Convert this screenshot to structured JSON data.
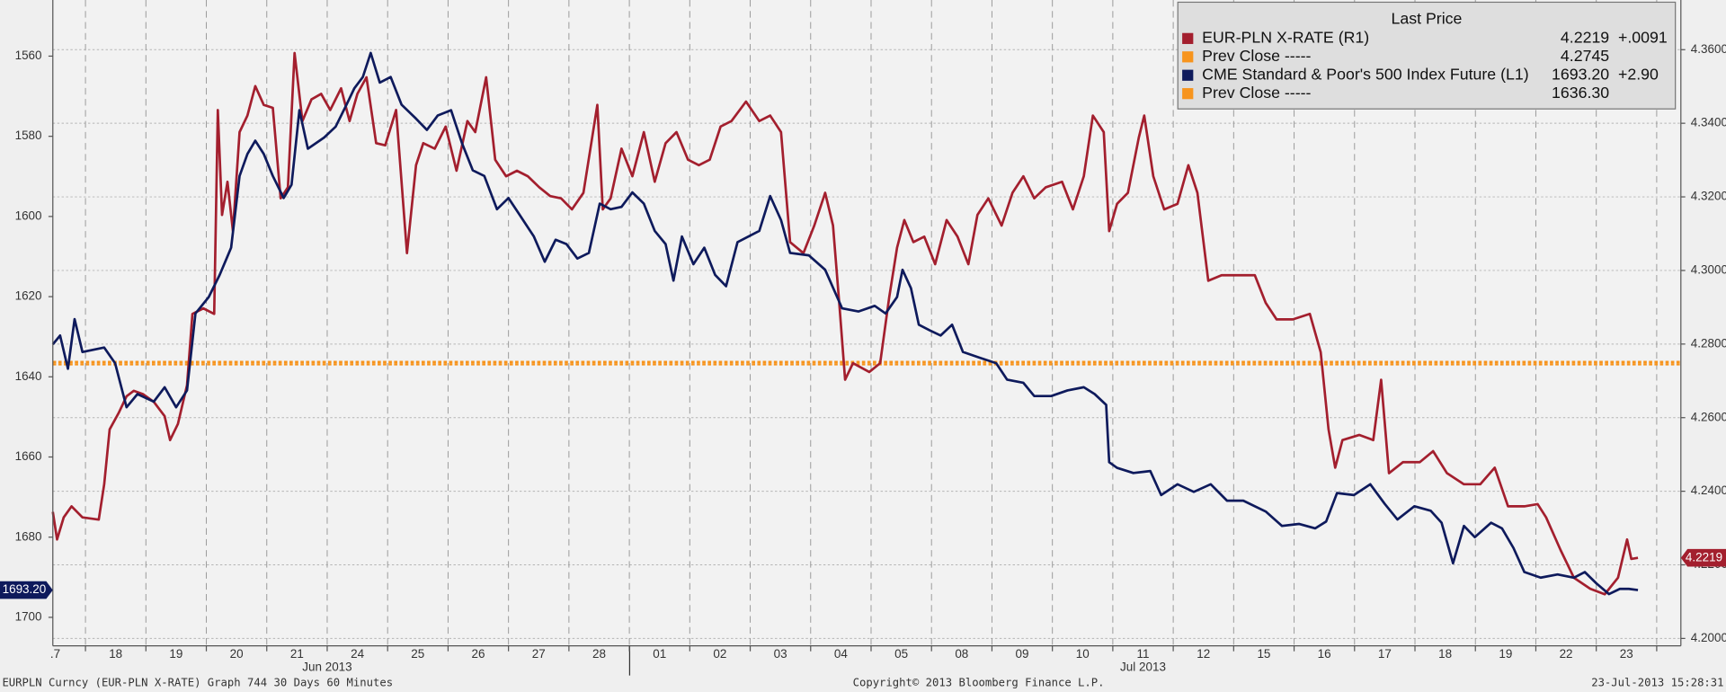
{
  "chart_data": {
    "type": "line",
    "xlim": [
      0.46,
      27.4
    ],
    "xticks": [
      {
        "value": 0.5,
        "label": ".7"
      },
      {
        "value": 1.5,
        "label": "18"
      },
      {
        "value": 2.5,
        "label": "19"
      },
      {
        "value": 3.5,
        "label": "20"
      },
      {
        "value": 4.5,
        "label": "21"
      },
      {
        "value": 5.5,
        "label": "24"
      },
      {
        "value": 6.5,
        "label": "25"
      },
      {
        "value": 7.5,
        "label": "26"
      },
      {
        "value": 8.5,
        "label": "27"
      },
      {
        "value": 9.5,
        "label": "28"
      },
      {
        "value": 10.5,
        "label": "01"
      },
      {
        "value": 11.5,
        "label": "02"
      },
      {
        "value": 12.5,
        "label": "03"
      },
      {
        "value": 13.5,
        "label": "04"
      },
      {
        "value": 14.5,
        "label": "05"
      },
      {
        "value": 15.5,
        "label": "08"
      },
      {
        "value": 16.5,
        "label": "09"
      },
      {
        "value": 17.5,
        "label": "10"
      },
      {
        "value": 18.5,
        "label": "11"
      },
      {
        "value": 19.5,
        "label": "12"
      },
      {
        "value": 20.5,
        "label": "15"
      },
      {
        "value": 21.5,
        "label": "16"
      },
      {
        "value": 22.5,
        "label": "17"
      },
      {
        "value": 23.5,
        "label": "18"
      },
      {
        "value": 24.5,
        "label": "19"
      },
      {
        "value": 25.5,
        "label": "22"
      },
      {
        "value": 26.5,
        "label": "23"
      }
    ],
    "month_ticks": [
      {
        "value": 5.0,
        "label": "Jun 2013"
      },
      {
        "value": 18.5,
        "label": "Jul 2013"
      }
    ],
    "ylim": [
      1707.1,
      1546.0
    ],
    "yticks": [
      1560,
      1580,
      1600,
      1620,
      1640,
      1660,
      1680,
      1700
    ],
    "y2lim": [
      4.198,
      4.3735
    ],
    "y2ticks": [
      {
        "value": 4.2,
        "label": "4.2000"
      },
      {
        "value": 4.22,
        "label": "4.2200"
      },
      {
        "value": 4.24,
        "label": "4.2400"
      },
      {
        "value": 4.26,
        "label": "4.2600"
      },
      {
        "value": 4.28,
        "label": "4.2800"
      },
      {
        "value": 4.3,
        "label": "4.3000"
      },
      {
        "value": 4.32,
        "label": "4.3200"
      },
      {
        "value": 4.34,
        "label": "4.3400"
      },
      {
        "value": 4.36,
        "label": "4.3600"
      }
    ],
    "grid": true,
    "legend": {
      "title": "Last Price",
      "position": "upper right"
    },
    "prev_close_color": "#f7941d",
    "series": [
      {
        "name": "EUR-PLN X-RATE  (R1)",
        "color": "#a31f2e",
        "axis": "y2",
        "last": 4.2219,
        "change": {
          "value": 0.0091,
          "label": "+.0091"
        },
        "prev_close_name": "Prev Close -----",
        "prev_close": 4.2745,
        "x": [
          0.46,
          0.53,
          0.64,
          0.77,
          0.95,
          1.22,
          1.31,
          1.4,
          1.55,
          1.68,
          1.8,
          1.95,
          2.13,
          2.31,
          2.4,
          2.53,
          2.68,
          2.77,
          2.95,
          3.13,
          3.19,
          3.26,
          3.35,
          3.44,
          3.55,
          3.68,
          3.81,
          3.95,
          4.1,
          4.23,
          4.35,
          4.46,
          4.59,
          4.74,
          4.9,
          5.05,
          5.23,
          5.37,
          5.5,
          5.65,
          5.81,
          5.96,
          6.14,
          6.32,
          6.47,
          6.59,
          6.78,
          6.96,
          7.14,
          7.32,
          7.45,
          7.63,
          7.78,
          7.96,
          8.14,
          8.32,
          8.51,
          8.69,
          8.87,
          9.05,
          9.24,
          9.47,
          9.56,
          9.69,
          9.87,
          10.05,
          10.24,
          10.42,
          10.6,
          10.78,
          10.97,
          11.15,
          11.33,
          11.51,
          11.69,
          11.93,
          12.15,
          12.33,
          12.51,
          12.66,
          12.88,
          13.06,
          13.24,
          13.37,
          13.48,
          13.57,
          13.7,
          13.97,
          14.15,
          14.3,
          14.43,
          14.55,
          14.7,
          14.88,
          15.06,
          15.25,
          15.43,
          15.61,
          15.76,
          15.94,
          16.16,
          16.34,
          16.52,
          16.7,
          16.89,
          17.16,
          17.34,
          17.52,
          17.67,
          17.85,
          17.94,
          18.07,
          18.25,
          18.43,
          18.52,
          18.67,
          18.85,
          19.07,
          19.25,
          19.4,
          19.58,
          19.8,
          20.07,
          20.35,
          20.53,
          20.71,
          20.98,
          21.26,
          21.44,
          21.57,
          21.68,
          21.8,
          22.08,
          22.31,
          22.44,
          22.57,
          22.8,
          23.08,
          23.3,
          23.53,
          23.81,
          24.08,
          24.32,
          24.54,
          24.81,
          25.03,
          25.17,
          25.41,
          25.63,
          25.9,
          26.14,
          26.36,
          26.51,
          26.58,
          26.69
        ],
        "values": [
          4.2344,
          4.2269,
          4.2329,
          4.2359,
          4.2329,
          4.2323,
          4.2419,
          4.2568,
          4.2613,
          4.2658,
          4.2673,
          4.2664,
          4.2643,
          4.2604,
          4.2539,
          4.2583,
          4.2688,
          4.2882,
          4.2897,
          4.2882,
          4.3436,
          4.3151,
          4.3241,
          4.3107,
          4.3376,
          4.3421,
          4.3501,
          4.345,
          4.3442,
          4.3196,
          4.3226,
          4.3591,
          4.3406,
          4.3465,
          4.348,
          4.3436,
          4.3495,
          4.3406,
          4.348,
          4.3525,
          4.3346,
          4.334,
          4.3436,
          4.3047,
          4.3286,
          4.3346,
          4.3331,
          4.3391,
          4.3271,
          4.3406,
          4.3376,
          4.3525,
          4.3301,
          4.3256,
          4.3271,
          4.3256,
          4.3226,
          4.3202,
          4.3196,
          4.3166,
          4.3211,
          4.345,
          4.3166,
          4.3196,
          4.3331,
          4.3256,
          4.3376,
          4.3241,
          4.3346,
          4.3376,
          4.3301,
          4.3286,
          4.3301,
          4.3391,
          4.3406,
          4.3459,
          4.3406,
          4.3421,
          4.3376,
          4.3077,
          4.3047,
          4.3122,
          4.3211,
          4.3122,
          4.2897,
          4.2703,
          4.2748,
          4.2724,
          4.2748,
          4.2927,
          4.3062,
          4.3137,
          4.3077,
          4.3092,
          4.3017,
          4.3137,
          4.3092,
          4.3017,
          4.3151,
          4.3196,
          4.3122,
          4.3211,
          4.3256,
          4.3196,
          4.3226,
          4.3241,
          4.3166,
          4.3256,
          4.3421,
          4.3376,
          4.3107,
          4.3181,
          4.3211,
          4.3361,
          4.3421,
          4.3256,
          4.3166,
          4.3181,
          4.3286,
          4.3211,
          4.2972,
          4.2987,
          4.2987,
          4.2987,
          4.2912,
          4.2867,
          4.2867,
          4.2882,
          4.2778,
          4.2568,
          4.2464,
          4.2539,
          4.2553,
          4.2539,
          4.2703,
          4.2449,
          4.2479,
          4.2479,
          4.2509,
          4.2449,
          4.2419,
          4.2419,
          4.2464,
          4.2359,
          4.2359,
          4.2365,
          4.2329,
          4.224,
          4.2165,
          4.2135,
          4.212,
          4.2165,
          4.2269,
          4.2216,
          4.2219
        ]
      },
      {
        "name": "CME Standard & Poor's 500 Index Future  (L1)",
        "color": "#0e1a5c",
        "axis": "y",
        "last": {
          "value": 1693.2,
          "label": "1693.20"
        },
        "change": {
          "value": 2.9,
          "label": "+2.90"
        },
        "prev_close_name": "Prev Close -----",
        "prev_close": {
          "value": 1636.3,
          "label": "1636.30"
        },
        "x": [
          0.46,
          0.58,
          0.71,
          0.82,
          0.95,
          1.31,
          1.49,
          1.68,
          1.86,
          2.13,
          2.31,
          2.5,
          2.68,
          2.82,
          3.04,
          3.22,
          3.41,
          3.55,
          3.68,
          3.81,
          3.95,
          4.1,
          4.28,
          4.41,
          4.54,
          4.68,
          4.95,
          5.14,
          5.32,
          5.45,
          5.59,
          5.72,
          5.87,
          6.05,
          6.23,
          6.47,
          6.65,
          6.83,
          7.05,
          7.23,
          7.41,
          7.6,
          7.81,
          8.0,
          8.18,
          8.42,
          8.6,
          8.78,
          8.96,
          9.14,
          9.33,
          9.51,
          9.69,
          9.87,
          10.05,
          10.24,
          10.42,
          10.6,
          10.73,
          10.87,
          11.06,
          11.24,
          11.42,
          11.6,
          11.79,
          11.97,
          12.15,
          12.33,
          12.51,
          12.66,
          12.97,
          13.24,
          13.52,
          13.79,
          14.06,
          14.24,
          14.43,
          14.52,
          14.66,
          14.79,
          14.97,
          15.15,
          15.34,
          15.52,
          15.79,
          16.07,
          16.25,
          16.52,
          16.7,
          16.98,
          17.25,
          17.52,
          17.7,
          17.89,
          17.94,
          18.07,
          18.34,
          18.62,
          18.8,
          19.07,
          19.34,
          19.62,
          19.89,
          20.16,
          20.53,
          20.8,
          21.08,
          21.35,
          21.53,
          21.71,
          21.99,
          22.26,
          22.5,
          22.71,
          22.99,
          23.26,
          23.44,
          23.63,
          23.81,
          23.99,
          24.26,
          24.44,
          24.63,
          24.81,
          25.08,
          25.36,
          25.63,
          25.81,
          26.0,
          26.21,
          26.39,
          26.54,
          26.69
        ],
        "values": [
          1631.9,
          1629.7,
          1638.0,
          1625.6,
          1633.8,
          1632.7,
          1636.6,
          1647.6,
          1644.3,
          1646.2,
          1642.6,
          1647.6,
          1643.4,
          1624.2,
          1620.1,
          1614.6,
          1607.8,
          1589.9,
          1584.4,
          1581.1,
          1584.4,
          1589.9,
          1595.4,
          1592.1,
          1573.5,
          1583.1,
          1580.3,
          1577.6,
          1572.1,
          1568.0,
          1565.2,
          1559.2,
          1566.6,
          1565.2,
          1572.1,
          1575.6,
          1578.4,
          1574.8,
          1573.5,
          1581.7,
          1588.5,
          1589.9,
          1598.2,
          1595.4,
          1599.5,
          1605.0,
          1611.3,
          1605.8,
          1606.9,
          1610.5,
          1609.1,
          1596.8,
          1598.2,
          1597.6,
          1594.0,
          1596.8,
          1603.6,
          1606.9,
          1616.0,
          1605.0,
          1611.9,
          1607.8,
          1614.6,
          1617.4,
          1606.4,
          1605.0,
          1603.6,
          1594.9,
          1600.9,
          1609.1,
          1609.7,
          1613.3,
          1622.9,
          1623.7,
          1622.3,
          1624.2,
          1620.1,
          1613.3,
          1617.9,
          1627.0,
          1628.4,
          1629.7,
          1627.0,
          1633.8,
          1635.2,
          1636.6,
          1640.7,
          1641.5,
          1644.8,
          1644.8,
          1643.4,
          1642.6,
          1644.3,
          1647.0,
          1661.3,
          1662.7,
          1664.0,
          1663.5,
          1669.5,
          1666.8,
          1668.7,
          1666.8,
          1670.9,
          1670.9,
          1673.6,
          1677.2,
          1676.7,
          1677.8,
          1676.1,
          1669.0,
          1669.5,
          1666.8,
          1671.7,
          1675.6,
          1672.3,
          1673.4,
          1676.4,
          1686.5,
          1677.2,
          1680.0,
          1676.4,
          1677.8,
          1682.7,
          1688.7,
          1690.1,
          1689.3,
          1690.1,
          1688.7,
          1691.5,
          1694.2,
          1692.9,
          1692.9,
          1693.2
        ]
      }
    ]
  },
  "footer": {
    "left": "EURPLN Curncy (EUR-PLN X-RATE) Graph 744 30 Days 60 Minutes",
    "center": "Copyright© 2013 Bloomberg Finance L.P.",
    "right": "23-Jul-2013 15:28:31"
  }
}
